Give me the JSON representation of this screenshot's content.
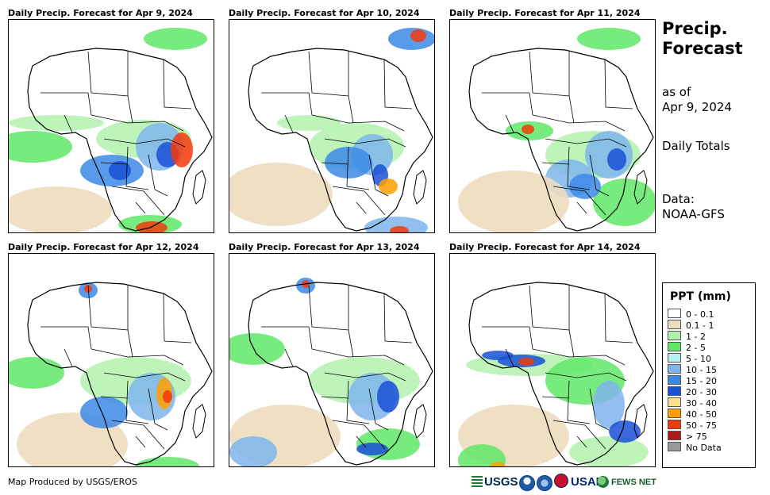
{
  "panels": [
    {
      "title": "Daily Precip. Forecast for Apr 9, 2024"
    },
    {
      "title": "Daily Precip. Forecast for Apr 10, 2024"
    },
    {
      "title": "Daily Precip. Forecast for Apr 11, 2024"
    },
    {
      "title": "Daily Precip. Forecast for Apr 12, 2024"
    },
    {
      "title": "Daily Precip. Forecast for Apr 13, 2024"
    },
    {
      "title": "Daily Precip. Forecast for Apr 14, 2024"
    }
  ],
  "side": {
    "title_line1": "Precip.",
    "title_line2": "Forecast",
    "asof_line1": "as of",
    "asof_line2": "Apr 9, 2024",
    "totals": "Daily Totals",
    "data_line1": "Data:",
    "data_line2": "NOAA-GFS"
  },
  "legend": {
    "title": "PPT (mm)",
    "items": [
      {
        "label": "0 - 0.1",
        "color": "#ffffff"
      },
      {
        "label": "0.1 - 1",
        "color": "#ecdcbf"
      },
      {
        "label": "1 - 2",
        "color": "#b3f2ae"
      },
      {
        "label": "2 - 5",
        "color": "#5fe866"
      },
      {
        "label": "5 - 10",
        "color": "#b4f0f0"
      },
      {
        "label": "10 - 15",
        "color": "#7eb5ec"
      },
      {
        "label": "15 - 20",
        "color": "#3c8ae6"
      },
      {
        "label": "20 - 30",
        "color": "#1a4fd6"
      },
      {
        "label": "30 - 40",
        "color": "#ffe08a"
      },
      {
        "label": "40 - 50",
        "color": "#ff9f00"
      },
      {
        "label": "50 - 75",
        "color": "#f23a0c"
      },
      {
        "label": "> 75",
        "color": "#a81b1b"
      },
      {
        "label": "No Data",
        "color": "#999999"
      }
    ]
  },
  "credit": "Map Produced by USGS/EROS",
  "logos": {
    "usgs": "USGS",
    "usaid": "USAID",
    "fews": "FEWS NET"
  }
}
